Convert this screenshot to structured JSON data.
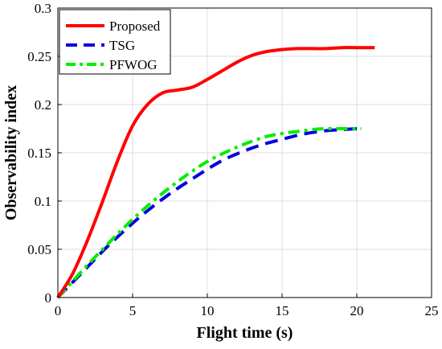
{
  "chart_data": {
    "type": "line",
    "xlabel": "Flight time (s)",
    "ylabel": "Observability index",
    "xlim": [
      0,
      25
    ],
    "ylim": [
      0,
      0.3
    ],
    "x_ticks": [
      0,
      5,
      10,
      15,
      20,
      25
    ],
    "y_ticks": [
      0,
      0.05,
      0.1,
      0.15,
      0.2,
      0.25,
      0.3
    ],
    "x_tick_labels": [
      "0",
      "5",
      "10",
      "15",
      "20",
      "25"
    ],
    "y_tick_labels": [
      "0",
      "0.05",
      "0.1",
      "0.15",
      "0.2",
      "0.25",
      "0.3"
    ],
    "grid": true,
    "legend_position": "top-left",
    "series": [
      {
        "name": "Proposed",
        "color": "#ff0000",
        "style": "solid",
        "x": [
          0,
          1,
          2,
          3,
          4,
          5,
          6,
          7,
          8,
          9,
          10,
          11,
          12,
          13,
          14,
          15,
          16,
          17,
          18,
          19,
          20,
          21.2
        ],
        "y": [
          0,
          0.025,
          0.06,
          0.1,
          0.142,
          0.178,
          0.2,
          0.212,
          0.215,
          0.218,
          0.226,
          0.235,
          0.244,
          0.251,
          0.255,
          0.257,
          0.258,
          0.258,
          0.258,
          0.259,
          0.259,
          0.259
        ]
      },
      {
        "name": "TSG",
        "color": "#0000dd",
        "style": "dashed",
        "x": [
          0,
          1,
          2,
          3,
          4,
          5,
          6,
          7,
          8,
          9,
          10,
          11,
          12,
          13,
          14,
          15,
          16,
          17,
          18,
          19,
          20
        ],
        "y": [
          0,
          0.016,
          0.032,
          0.048,
          0.063,
          0.077,
          0.09,
          0.102,
          0.113,
          0.123,
          0.133,
          0.142,
          0.149,
          0.155,
          0.16,
          0.164,
          0.168,
          0.171,
          0.173,
          0.174,
          0.175
        ]
      },
      {
        "name": "PFWOG",
        "color": "#00ee00",
        "style": "dashdot",
        "x": [
          0,
          1,
          2,
          3,
          4,
          5,
          6,
          7,
          8,
          9,
          10,
          11,
          12,
          13,
          14,
          15,
          16,
          17,
          18,
          19,
          20.3
        ],
        "y": [
          0,
          0.017,
          0.034,
          0.05,
          0.066,
          0.081,
          0.095,
          0.108,
          0.12,
          0.131,
          0.141,
          0.149,
          0.156,
          0.162,
          0.167,
          0.17,
          0.172,
          0.174,
          0.175,
          0.175,
          0.175
        ]
      }
    ]
  }
}
